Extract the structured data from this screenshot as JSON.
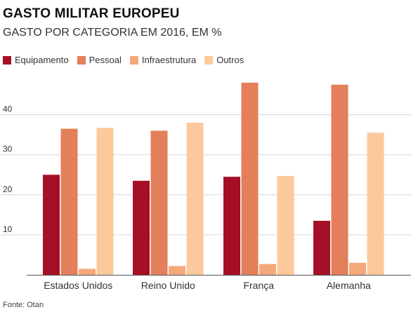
{
  "title": "GASTO MILITAR EUROPEU",
  "subtitle": "GASTO POR CATEGORIA EM 2016, EM %",
  "source": "Fonte: Otan",
  "chart_data": {
    "type": "bar",
    "title": "GASTO MILITAR EUROPEU",
    "subtitle": "GASTO POR CATEGORIA EM 2016, EM %",
    "categories": [
      "Estados Unidos",
      "Reino Unido",
      "França",
      "Alemanha"
    ],
    "series": [
      {
        "name": "Equipamento",
        "color": "#a50f26",
        "values": [
          25.0,
          23.5,
          24.5,
          13.5
        ]
      },
      {
        "name": "Pessoal",
        "color": "#e37f5a",
        "values": [
          36.5,
          36.0,
          48.0,
          47.5
        ]
      },
      {
        "name": "Infraestrutura",
        "color": "#f5a87a",
        "values": [
          1.5,
          2.2,
          2.7,
          3.0
        ]
      },
      {
        "name": "Outros",
        "color": "#fbc99c",
        "values": [
          36.7,
          38.0,
          24.7,
          35.5
        ]
      }
    ],
    "yticks": [
      10,
      20,
      30,
      40
    ],
    "ylim": [
      0,
      48.5
    ],
    "xlabel": "",
    "ylabel": "",
    "grid": true,
    "legend": "top-left"
  }
}
